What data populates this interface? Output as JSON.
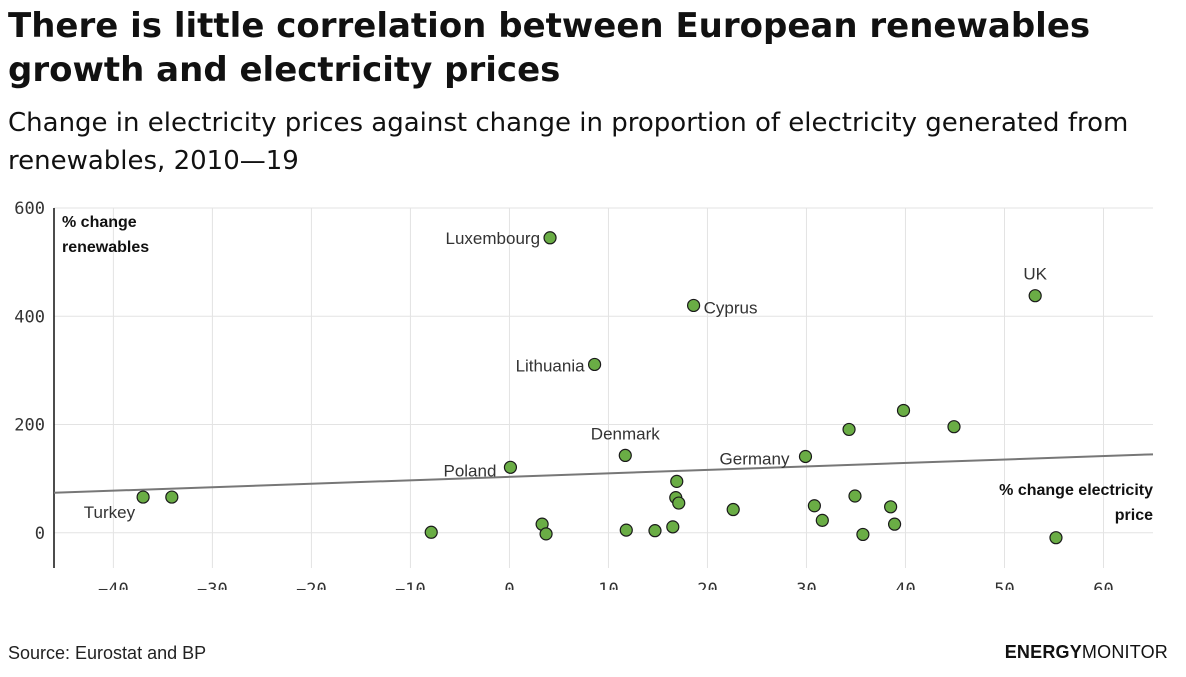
{
  "title": "There is little correlation between European renewables growth and electricity prices",
  "subtitle": "Change in electricity prices against change in proportion of electricity generated from renewables, 2010—19",
  "source": "Source: Eurostat and BP",
  "brand": {
    "part1": "ENERGY",
    "part2": "MONITOR"
  },
  "colors": {
    "point_fill": "#6aad45",
    "point_stroke": "#1a1a1a",
    "trend": "#777777",
    "grid": "#e3e3e3"
  },
  "chart_data": {
    "type": "scatter",
    "xlabel_lines": [
      "% change electricity",
      "price"
    ],
    "ylabel_lines": [
      "% change",
      "renewables"
    ],
    "xlim": [
      -46,
      65
    ],
    "ylim": [
      -65,
      600
    ],
    "x_ticks": [
      "−40",
      "−30",
      "−20",
      "−10",
      "0",
      "10",
      "20",
      "30",
      "40",
      "50",
      "60"
    ],
    "x_tick_values": [
      -40,
      -30,
      -20,
      -10,
      0,
      10,
      20,
      30,
      40,
      50,
      60
    ],
    "y_ticks": [
      "600",
      "400",
      "200",
      "0"
    ],
    "y_tick_values": [
      600,
      400,
      200,
      0
    ],
    "grid": true,
    "trendline": {
      "x": [
        -46,
        65
      ],
      "y": [
        74,
        145
      ]
    },
    "points": [
      {
        "x": 4.1,
        "y": 545,
        "label": "Luxembourg"
      },
      {
        "x": 53.1,
        "y": 438,
        "label": "UK"
      },
      {
        "x": 18.6,
        "y": 420,
        "label": "Cyprus"
      },
      {
        "x": 8.6,
        "y": 311,
        "label": "Lithuania"
      },
      {
        "x": 39.8,
        "y": 226
      },
      {
        "x": 44.9,
        "y": 196
      },
      {
        "x": 34.3,
        "y": 191
      },
      {
        "x": 11.7,
        "y": 143,
        "label": "Denmark"
      },
      {
        "x": 29.9,
        "y": 141,
        "label": "Germany"
      },
      {
        "x": 0.1,
        "y": 121,
        "label": "Poland"
      },
      {
        "x": 16.9,
        "y": 95
      },
      {
        "x": -37.0,
        "y": 66,
        "label": "Turkey"
      },
      {
        "x": -34.1,
        "y": 66
      },
      {
        "x": 16.8,
        "y": 65
      },
      {
        "x": 17.1,
        "y": 55
      },
      {
        "x": 34.9,
        "y": 68
      },
      {
        "x": 30.8,
        "y": 50
      },
      {
        "x": 38.5,
        "y": 48
      },
      {
        "x": 22.6,
        "y": 43
      },
      {
        "x": 31.6,
        "y": 23
      },
      {
        "x": 38.9,
        "y": 16
      },
      {
        "x": 3.3,
        "y": 16
      },
      {
        "x": 16.5,
        "y": 11
      },
      {
        "x": 11.8,
        "y": 5
      },
      {
        "x": 14.7,
        "y": 4
      },
      {
        "x": -7.9,
        "y": 1
      },
      {
        "x": 3.7,
        "y": -2
      },
      {
        "x": 35.7,
        "y": -3
      },
      {
        "x": 55.2,
        "y": -9
      }
    ]
  }
}
